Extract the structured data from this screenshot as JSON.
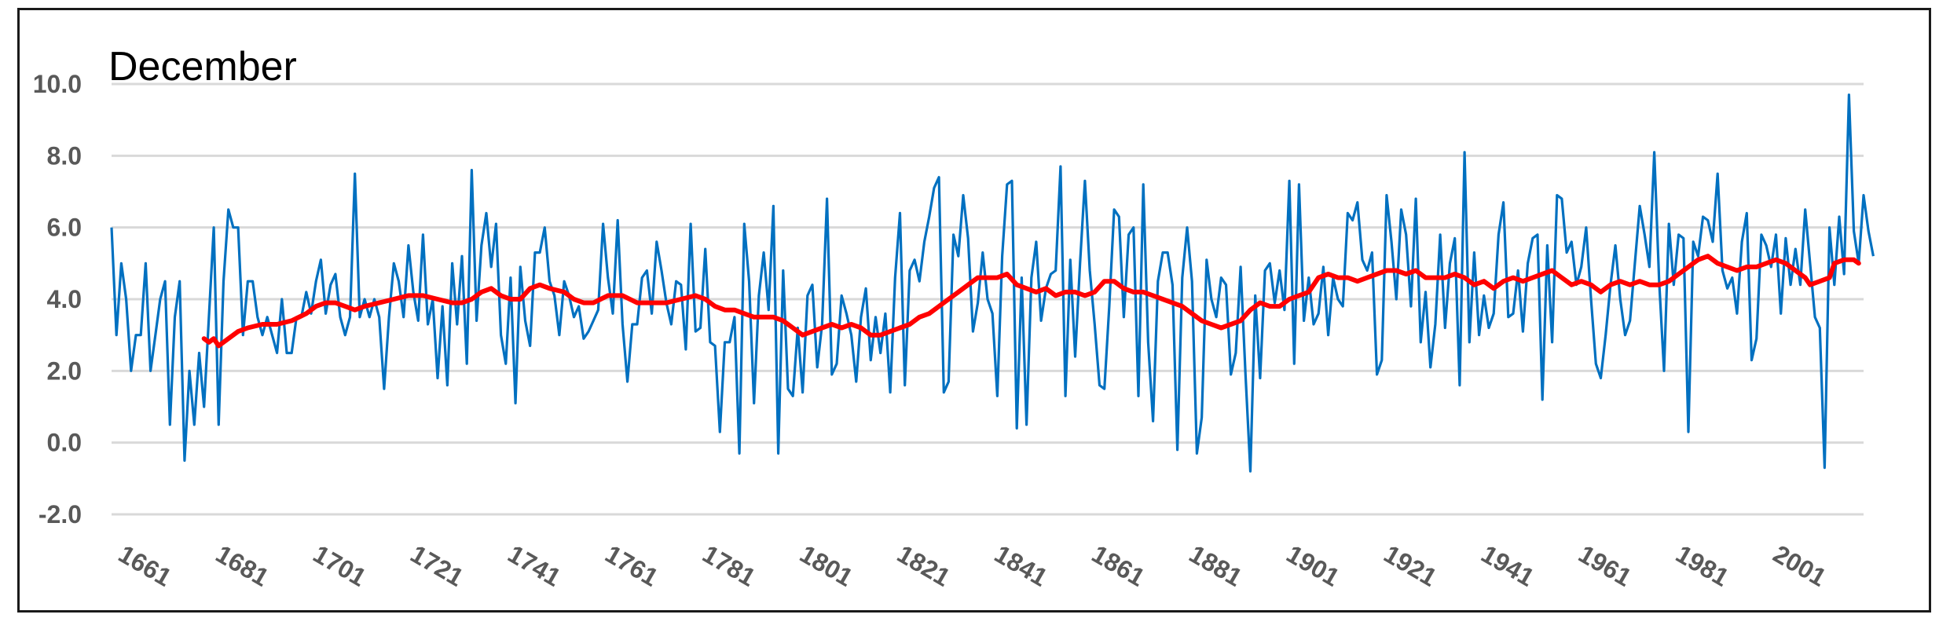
{
  "chart_data": {
    "type": "line",
    "title": "December",
    "xlabel": "",
    "ylabel": "",
    "ylim": [
      -2.0,
      10.0
    ],
    "y_ticks": [
      "-2.0",
      "0.0",
      "2.0",
      "4.0",
      "6.0",
      "8.0",
      "10.0"
    ],
    "x_ticks": [
      "1661",
      "1681",
      "1701",
      "1721",
      "1741",
      "1761",
      "1781",
      "1801",
      "1821",
      "1841",
      "1861",
      "1881",
      "1901",
      "1921",
      "1941",
      "1961",
      "1981",
      "2001"
    ],
    "xlim": [
      1659,
      2019
    ],
    "grid": "horizontal",
    "legend": "none",
    "colors": {
      "annual": "#0070C0",
      "moving_average": "#FF0000",
      "grid": "#D9D9D9"
    },
    "series": [
      {
        "x_start": 1659,
        "values": [
          6.0,
          3.0,
          5.0,
          4.0,
          2.0,
          3.0,
          3.0,
          5.0,
          2.0,
          3.0,
          4.0,
          4.5,
          0.5,
          3.5,
          4.5,
          -0.5,
          2.0,
          0.5,
          2.5,
          1.0,
          3.5,
          6.0,
          0.5,
          4.5,
          6.5,
          6.0,
          6.0,
          3.0,
          4.5,
          4.5,
          3.5,
          3.0,
          3.5,
          3.0,
          2.5,
          4.0,
          2.5,
          2.5,
          3.5,
          3.5,
          4.2,
          3.6,
          4.5,
          5.1,
          3.6,
          4.4,
          4.7,
          3.5,
          3.0,
          3.5,
          7.5,
          3.5,
          4.0,
          3.5,
          4.0,
          3.5,
          1.5,
          3.5,
          5.0,
          4.5,
          3.5,
          5.5,
          4.2,
          3.4,
          5.8,
          3.3,
          4.0,
          1.8,
          3.8,
          1.6,
          5.0,
          3.3,
          5.2,
          2.2,
          7.6,
          3.4,
          5.5,
          6.4,
          4.9,
          6.1,
          3.0,
          2.2,
          4.6,
          1.1,
          4.9,
          3.4,
          2.7,
          5.3,
          5.3,
          6.0,
          4.5,
          4.1,
          3.0,
          4.5,
          4.1,
          3.5,
          3.8,
          2.9,
          3.1,
          3.4,
          3.7,
          6.1,
          4.6,
          3.6,
          6.2,
          3.3,
          1.7,
          3.3,
          3.3,
          4.6,
          4.8,
          3.6,
          5.6,
          4.8,
          3.9,
          3.3,
          4.5,
          4.4,
          2.6,
          6.1,
          3.1,
          3.2,
          5.4,
          2.8,
          2.7,
          0.3,
          2.8,
          2.8,
          3.5,
          -0.3,
          6.1,
          4.5,
          1.1,
          4.1,
          5.3,
          3.7,
          6.6,
          -0.3,
          4.8,
          1.5,
          1.3,
          3.2,
          1.4,
          4.1,
          4.4,
          2.1,
          3.3,
          6.8,
          1.9,
          2.2,
          4.1,
          3.6,
          3.0,
          1.7,
          3.5,
          4.3,
          2.3,
          3.5,
          2.5,
          3.6,
          1.4,
          4.6,
          6.4,
          1.6,
          4.8,
          5.1,
          4.5,
          5.6,
          6.3,
          7.1,
          7.4,
          1.4,
          1.7,
          5.8,
          5.2,
          6.9,
          5.7,
          3.1,
          3.9,
          5.3,
          4.0,
          3.6,
          1.3,
          5.2,
          7.2,
          7.3,
          0.4,
          4.6,
          0.5,
          4.6,
          5.6,
          3.4,
          4.3,
          4.7,
          4.8,
          7.7,
          1.3,
          5.1,
          2.4,
          5.0,
          7.3,
          4.8,
          3.3,
          1.6,
          1.5,
          3.8,
          6.5,
          6.3,
          3.5,
          5.8,
          6.0,
          1.3,
          7.2,
          2.8,
          0.6,
          4.5,
          5.3,
          5.3,
          4.4,
          -0.2,
          4.6,
          6.0,
          4.5,
          -0.3,
          0.7,
          5.1,
          4.0,
          3.5,
          4.6,
          4.4,
          1.9,
          2.5,
          4.9,
          1.9,
          -0.8,
          4.1,
          1.8,
          4.8,
          5.0,
          3.9,
          4.8,
          3.7,
          7.3,
          2.2,
          7.2,
          3.4,
          4.6,
          3.3,
          3.6,
          4.9,
          3.0,
          4.6,
          4.0,
          3.8,
          6.4,
          6.2,
          6.7,
          5.1,
          4.8,
          5.3,
          1.9,
          2.3,
          6.9,
          5.6,
          4.0,
          6.5,
          5.8,
          3.8,
          6.8,
          2.8,
          4.2,
          2.1,
          3.3,
          5.8,
          3.2,
          5.0,
          5.7,
          1.6,
          8.1,
          2.8,
          5.3,
          3.0,
          4.1,
          3.2,
          3.6,
          5.8,
          6.7,
          3.5,
          3.6,
          4.8,
          3.1,
          5.0,
          5.7,
          5.8,
          1.2,
          5.5,
          2.8,
          6.9,
          6.8,
          5.3,
          5.6,
          4.4,
          4.9,
          6.0,
          4.0,
          2.2,
          1.8,
          3.0,
          4.4,
          5.5,
          4.0,
          3.0,
          3.4,
          5.0,
          6.6,
          5.8,
          4.9,
          8.1,
          4.5,
          2.0,
          6.1,
          4.4,
          5.8,
          5.7,
          0.3,
          5.6,
          5.2,
          6.3,
          6.2,
          5.6,
          7.5,
          4.8,
          4.3,
          4.6,
          3.6,
          5.6,
          6.4,
          2.3,
          2.9,
          5.8,
          5.5,
          4.9,
          5.8,
          3.6,
          5.7,
          4.4,
          5.4,
          4.4,
          6.5,
          5.0,
          3.5,
          3.2,
          -0.7,
          6.0,
          4.4,
          6.3,
          4.7,
          9.7,
          5.9,
          5.0,
          6.9,
          5.9,
          5.2
        ],
        "moving_average": [
          [
            1678,
            2.9
          ],
          [
            1679,
            2.8
          ],
          [
            1680,
            2.9
          ],
          [
            1681,
            2.7
          ],
          [
            1683,
            2.9
          ],
          [
            1685,
            3.1
          ],
          [
            1687,
            3.2
          ],
          [
            1690,
            3.3
          ],
          [
            1693,
            3.3
          ],
          [
            1696,
            3.4
          ],
          [
            1699,
            3.6
          ],
          [
            1701,
            3.8
          ],
          [
            1703,
            3.9
          ],
          [
            1705,
            3.9
          ],
          [
            1707,
            3.8
          ],
          [
            1709,
            3.7
          ],
          [
            1711,
            3.8
          ],
          [
            1714,
            3.9
          ],
          [
            1717,
            4.0
          ],
          [
            1720,
            4.1
          ],
          [
            1723,
            4.1
          ],
          [
            1726,
            4.0
          ],
          [
            1729,
            3.9
          ],
          [
            1731,
            3.9
          ],
          [
            1733,
            4.0
          ],
          [
            1735,
            4.2
          ],
          [
            1737,
            4.3
          ],
          [
            1739,
            4.1
          ],
          [
            1741,
            4.0
          ],
          [
            1743,
            4.0
          ],
          [
            1745,
            4.3
          ],
          [
            1747,
            4.4
          ],
          [
            1749,
            4.3
          ],
          [
            1752,
            4.2
          ],
          [
            1754,
            4.0
          ],
          [
            1756,
            3.9
          ],
          [
            1758,
            3.9
          ],
          [
            1761,
            4.1
          ],
          [
            1764,
            4.1
          ],
          [
            1767,
            3.9
          ],
          [
            1770,
            3.9
          ],
          [
            1773,
            3.9
          ],
          [
            1776,
            4.0
          ],
          [
            1779,
            4.1
          ],
          [
            1781,
            4.0
          ],
          [
            1783,
            3.8
          ],
          [
            1785,
            3.7
          ],
          [
            1787,
            3.7
          ],
          [
            1789,
            3.6
          ],
          [
            1791,
            3.5
          ],
          [
            1793,
            3.5
          ],
          [
            1795,
            3.5
          ],
          [
            1797,
            3.4
          ],
          [
            1799,
            3.2
          ],
          [
            1801,
            3.0
          ],
          [
            1803,
            3.1
          ],
          [
            1805,
            3.2
          ],
          [
            1807,
            3.3
          ],
          [
            1809,
            3.2
          ],
          [
            1811,
            3.3
          ],
          [
            1813,
            3.2
          ],
          [
            1815,
            3.0
          ],
          [
            1817,
            3.0
          ],
          [
            1819,
            3.1
          ],
          [
            1821,
            3.2
          ],
          [
            1823,
            3.3
          ],
          [
            1825,
            3.5
          ],
          [
            1827,
            3.6
          ],
          [
            1829,
            3.8
          ],
          [
            1831,
            4.0
          ],
          [
            1833,
            4.2
          ],
          [
            1835,
            4.4
          ],
          [
            1837,
            4.6
          ],
          [
            1839,
            4.6
          ],
          [
            1841,
            4.6
          ],
          [
            1843,
            4.7
          ],
          [
            1845,
            4.4
          ],
          [
            1847,
            4.3
          ],
          [
            1849,
            4.2
          ],
          [
            1851,
            4.3
          ],
          [
            1853,
            4.1
          ],
          [
            1855,
            4.2
          ],
          [
            1857,
            4.2
          ],
          [
            1859,
            4.1
          ],
          [
            1861,
            4.2
          ],
          [
            1863,
            4.5
          ],
          [
            1865,
            4.5
          ],
          [
            1867,
            4.3
          ],
          [
            1869,
            4.2
          ],
          [
            1871,
            4.2
          ],
          [
            1873,
            4.1
          ],
          [
            1875,
            4.0
          ],
          [
            1877,
            3.9
          ],
          [
            1879,
            3.8
          ],
          [
            1881,
            3.6
          ],
          [
            1883,
            3.4
          ],
          [
            1885,
            3.3
          ],
          [
            1887,
            3.2
          ],
          [
            1889,
            3.3
          ],
          [
            1891,
            3.4
          ],
          [
            1893,
            3.7
          ],
          [
            1895,
            3.9
          ],
          [
            1897,
            3.8
          ],
          [
            1899,
            3.8
          ],
          [
            1901,
            4.0
          ],
          [
            1903,
            4.1
          ],
          [
            1905,
            4.2
          ],
          [
            1907,
            4.6
          ],
          [
            1909,
            4.7
          ],
          [
            1911,
            4.6
          ],
          [
            1913,
            4.6
          ],
          [
            1915,
            4.5
          ],
          [
            1917,
            4.6
          ],
          [
            1919,
            4.7
          ],
          [
            1921,
            4.8
          ],
          [
            1923,
            4.8
          ],
          [
            1925,
            4.7
          ],
          [
            1927,
            4.8
          ],
          [
            1929,
            4.6
          ],
          [
            1931,
            4.6
          ],
          [
            1933,
            4.6
          ],
          [
            1935,
            4.7
          ],
          [
            1937,
            4.6
          ],
          [
            1939,
            4.4
          ],
          [
            1941,
            4.5
          ],
          [
            1943,
            4.3
          ],
          [
            1945,
            4.5
          ],
          [
            1947,
            4.6
          ],
          [
            1949,
            4.5
          ],
          [
            1951,
            4.6
          ],
          [
            1953,
            4.7
          ],
          [
            1955,
            4.8
          ],
          [
            1957,
            4.6
          ],
          [
            1959,
            4.4
          ],
          [
            1961,
            4.5
          ],
          [
            1963,
            4.4
          ],
          [
            1965,
            4.2
          ],
          [
            1967,
            4.4
          ],
          [
            1969,
            4.5
          ],
          [
            1971,
            4.4
          ],
          [
            1973,
            4.5
          ],
          [
            1975,
            4.4
          ],
          [
            1977,
            4.4
          ],
          [
            1979,
            4.5
          ],
          [
            1981,
            4.7
          ],
          [
            1983,
            4.9
          ],
          [
            1985,
            5.1
          ],
          [
            1987,
            5.2
          ],
          [
            1989,
            5.0
          ],
          [
            1991,
            4.9
          ],
          [
            1993,
            4.8
          ],
          [
            1995,
            4.9
          ],
          [
            1997,
            4.9
          ],
          [
            1999,
            5.0
          ],
          [
            2001,
            5.1
          ],
          [
            2003,
            5.0
          ],
          [
            2005,
            4.8
          ],
          [
            2007,
            4.6
          ],
          [
            2008,
            4.4
          ],
          [
            2010,
            4.5
          ],
          [
            2012,
            4.6
          ],
          [
            2013,
            5.0
          ],
          [
            2015,
            5.1
          ],
          [
            2017,
            5.1
          ],
          [
            2018,
            5.0
          ]
        ]
      }
    ]
  }
}
